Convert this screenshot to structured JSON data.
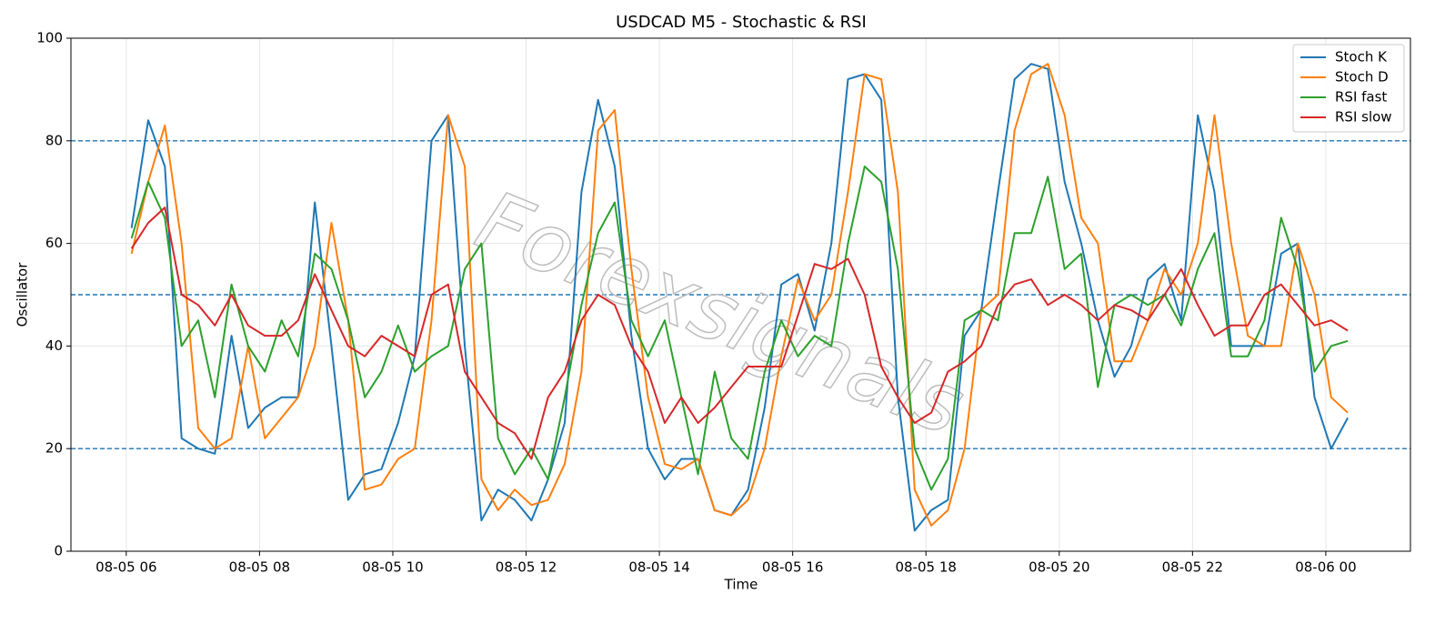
{
  "chart_data": {
    "type": "line",
    "title": "USDCAD M5 - Stochastic & RSI",
    "x_label": "Time",
    "y_label": "Oscillator",
    "watermark": "Forexsignals",
    "x": [
      6.08,
      6.33,
      6.58,
      6.83,
      7.08,
      7.33,
      7.58,
      7.83,
      8.08,
      8.33,
      8.58,
      8.83,
      9.08,
      9.33,
      9.58,
      9.83,
      10.08,
      10.33,
      10.58,
      10.83,
      11.08,
      11.33,
      11.58,
      11.83,
      12.08,
      12.33,
      12.58,
      12.83,
      13.08,
      13.33,
      13.58,
      13.83,
      14.08,
      14.33,
      14.58,
      14.83,
      15.08,
      15.33,
      15.58,
      15.83,
      16.08,
      16.33,
      16.58,
      16.83,
      17.08,
      17.33,
      17.58,
      17.83,
      18.08,
      18.33,
      18.58,
      18.83,
      19.08,
      19.33,
      19.58,
      19.83,
      20.08,
      20.33,
      20.58,
      20.83,
      21.08,
      21.33,
      21.58,
      21.83,
      22.08,
      22.33,
      22.58,
      22.83,
      23.08,
      23.33,
      23.58,
      23.83,
      24.08,
      24.33
    ],
    "series": [
      {
        "name": "Stoch K",
        "color": "#1f77b4",
        "values": [
          63,
          84,
          75,
          22,
          20,
          19,
          42,
          24,
          28,
          30,
          30,
          68,
          40,
          10,
          15,
          16,
          25,
          38,
          80,
          85,
          40,
          6,
          12,
          10,
          6,
          14,
          25,
          70,
          88,
          75,
          42,
          20,
          14,
          18,
          18,
          8,
          7,
          12,
          28,
          52,
          54,
          43,
          60,
          92,
          93,
          88,
          30,
          4,
          8,
          10,
          42,
          47,
          70,
          92,
          95,
          94,
          72,
          60,
          45,
          34,
          40,
          53,
          56,
          45,
          85,
          70,
          40,
          40,
          40,
          58,
          60,
          30,
          20,
          26
        ]
      },
      {
        "name": "Stoch D",
        "color": "#ff7f0e",
        "values": [
          58,
          72,
          83,
          60,
          24,
          20,
          22,
          40,
          22,
          26,
          30,
          40,
          64,
          45,
          12,
          13,
          18,
          20,
          45,
          85,
          75,
          14,
          8,
          12,
          9,
          10,
          17,
          35,
          82,
          86,
          55,
          30,
          17,
          16,
          18,
          8,
          7,
          10,
          20,
          38,
          53,
          45,
          50,
          70,
          93,
          92,
          70,
          12,
          5,
          8,
          20,
          47,
          50,
          82,
          93,
          95,
          85,
          65,
          60,
          37,
          37,
          45,
          55,
          50,
          60,
          85,
          60,
          42,
          40,
          40,
          60,
          50,
          30,
          27
        ]
      },
      {
        "name": "RSI fast",
        "color": "#2ca02c",
        "values": [
          61,
          72,
          65,
          40,
          45,
          30,
          52,
          40,
          35,
          45,
          38,
          58,
          55,
          45,
          30,
          35,
          44,
          35,
          38,
          40,
          55,
          60,
          22,
          15,
          20,
          14,
          30,
          48,
          62,
          68,
          45,
          38,
          45,
          30,
          15,
          35,
          22,
          18,
          35,
          45,
          38,
          42,
          40,
          60,
          75,
          72,
          55,
          20,
          12,
          18,
          45,
          47,
          45,
          62,
          62,
          73,
          55,
          58,
          32,
          48,
          50,
          48,
          50,
          44,
          55,
          62,
          38,
          38,
          45,
          65,
          55,
          35,
          40,
          41
        ]
      },
      {
        "name": "RSI slow",
        "color": "#d62728",
        "values": [
          59,
          64,
          67,
          50,
          48,
          44,
          50,
          44,
          42,
          42,
          45,
          54,
          47,
          40,
          38,
          42,
          40,
          38,
          50,
          52,
          35,
          30,
          25,
          23,
          18,
          30,
          35,
          45,
          50,
          48,
          40,
          35,
          25,
          30,
          25,
          28,
          32,
          36,
          36,
          36,
          46,
          56,
          55,
          57,
          50,
          36,
          30,
          25,
          27,
          35,
          37,
          40,
          48,
          52,
          53,
          48,
          50,
          48,
          45,
          48,
          47,
          45,
          50,
          55,
          48,
          42,
          44,
          44,
          50,
          52,
          48,
          44,
          45,
          43
        ]
      }
    ],
    "xlim": [
      5.17,
      25.27
    ],
    "ylim": [
      0,
      100
    ],
    "xticks": [
      {
        "value": 6,
        "label": "08-05 06"
      },
      {
        "value": 8,
        "label": "08-05 08"
      },
      {
        "value": 10,
        "label": "08-05 10"
      },
      {
        "value": 12,
        "label": "08-05 12"
      },
      {
        "value": 14,
        "label": "08-05 14"
      },
      {
        "value": 16,
        "label": "08-05 16"
      },
      {
        "value": 18,
        "label": "08-05 18"
      },
      {
        "value": 20,
        "label": "08-05 20"
      },
      {
        "value": 22,
        "label": "08-05 22"
      },
      {
        "value": 24,
        "label": "08-06 00"
      }
    ],
    "yticks": [
      0,
      20,
      40,
      60,
      80,
      100
    ],
    "hlines": [
      20,
      50,
      80
    ],
    "hline_color": "#1f77b4",
    "grid": true,
    "legend": "upper-right"
  }
}
